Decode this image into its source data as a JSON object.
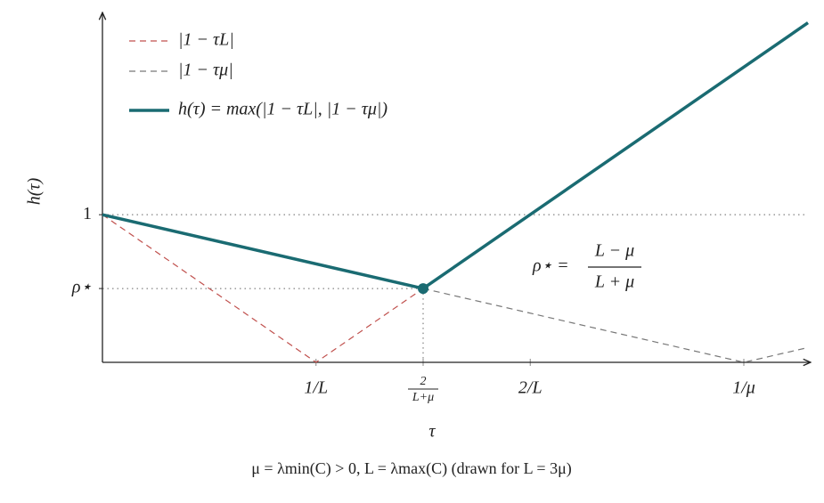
{
  "chart_data": {
    "type": "line",
    "y_label": "h(τ)",
    "x_label": "τ",
    "caption": "μ = λmin(C) > 0,    L = λmax(C)        (drawn for L = 3μ)",
    "annotation": {
      "lhs": "ρ⋆ =",
      "numerator": "L − μ",
      "denominator": "L + μ"
    },
    "xlim": [
      0,
      1.1
    ],
    "ylim": [
      0,
      2.4
    ],
    "xticks": [
      {
        "value": 0.333,
        "label": "1/L"
      },
      {
        "value": 0.5,
        "label": "2/(L+μ)"
      },
      {
        "value": 0.667,
        "label": "2/L"
      },
      {
        "value": 1,
        "label": "1/μ"
      }
    ],
    "yticks": [
      1,
      {
        "value": 0.5,
        "label": "ρ⋆"
      }
    ],
    "legend": "upper left",
    "series": [
      {
        "name": "|1 − τL|",
        "color": "#c0504d",
        "style": "dashed",
        "x": [
          0,
          0.333,
          0.5
        ],
        "values": [
          1,
          0,
          0.5
        ]
      },
      {
        "name": "|1 − τμ|",
        "color": "#777777",
        "style": "dashed",
        "x": [
          0.5,
          1,
          1.1
        ],
        "values": [
          0.5,
          0,
          0.1
        ]
      },
      {
        "name": "h(τ) = max(|1 − τL|, |1 − τμ|)",
        "color": "#1a6b72",
        "style": "solid",
        "x": [
          0,
          0.5,
          1.1
        ],
        "values": [
          1,
          0.5,
          2.3
        ]
      }
    ]
  }
}
